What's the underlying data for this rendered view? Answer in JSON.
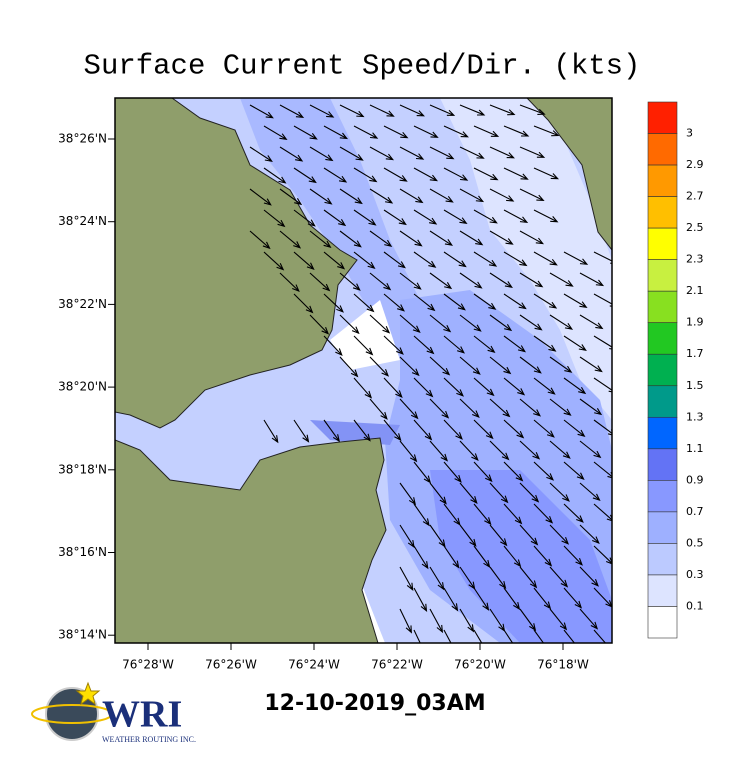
{
  "map": {
    "title": "Surface Current Speed/Dir. (kts)",
    "yticks": [
      "38°26'N",
      "38°24'N",
      "38°22'N",
      "38°20'N",
      "38°18'N",
      "38°16'N",
      "38°14'N"
    ],
    "xticks": [
      "76°28'W",
      "76°26'W",
      "76°24'W",
      "76°22'W",
      "76°20'W",
      "76°18'W"
    ],
    "colorbar": {
      "labels": [
        "3",
        "2.9",
        "2.7",
        "2.5",
        "2.3",
        "2.1",
        "1.9",
        "1.7",
        "1.5",
        "1.3",
        "1.1",
        "0.9",
        "0.7",
        "0.5",
        "0.3",
        "0.1"
      ],
      "colors": [
        "#ff2000",
        "#ff6a00",
        "#ff9900",
        "#ffbf00",
        "#ffff00",
        "#c8f040",
        "#88e020",
        "#22c822",
        "#00b050",
        "#009a8a",
        "#0066ff",
        "#6373f5",
        "#8898ff",
        "#9eb0ff",
        "#bccaff",
        "#dde4ff",
        "#ffffff"
      ]
    },
    "timestamp": "12-10-2019_03AM",
    "logo": {
      "name": "WRI",
      "tagline": "WEATHER ROUTING INC."
    }
  }
}
